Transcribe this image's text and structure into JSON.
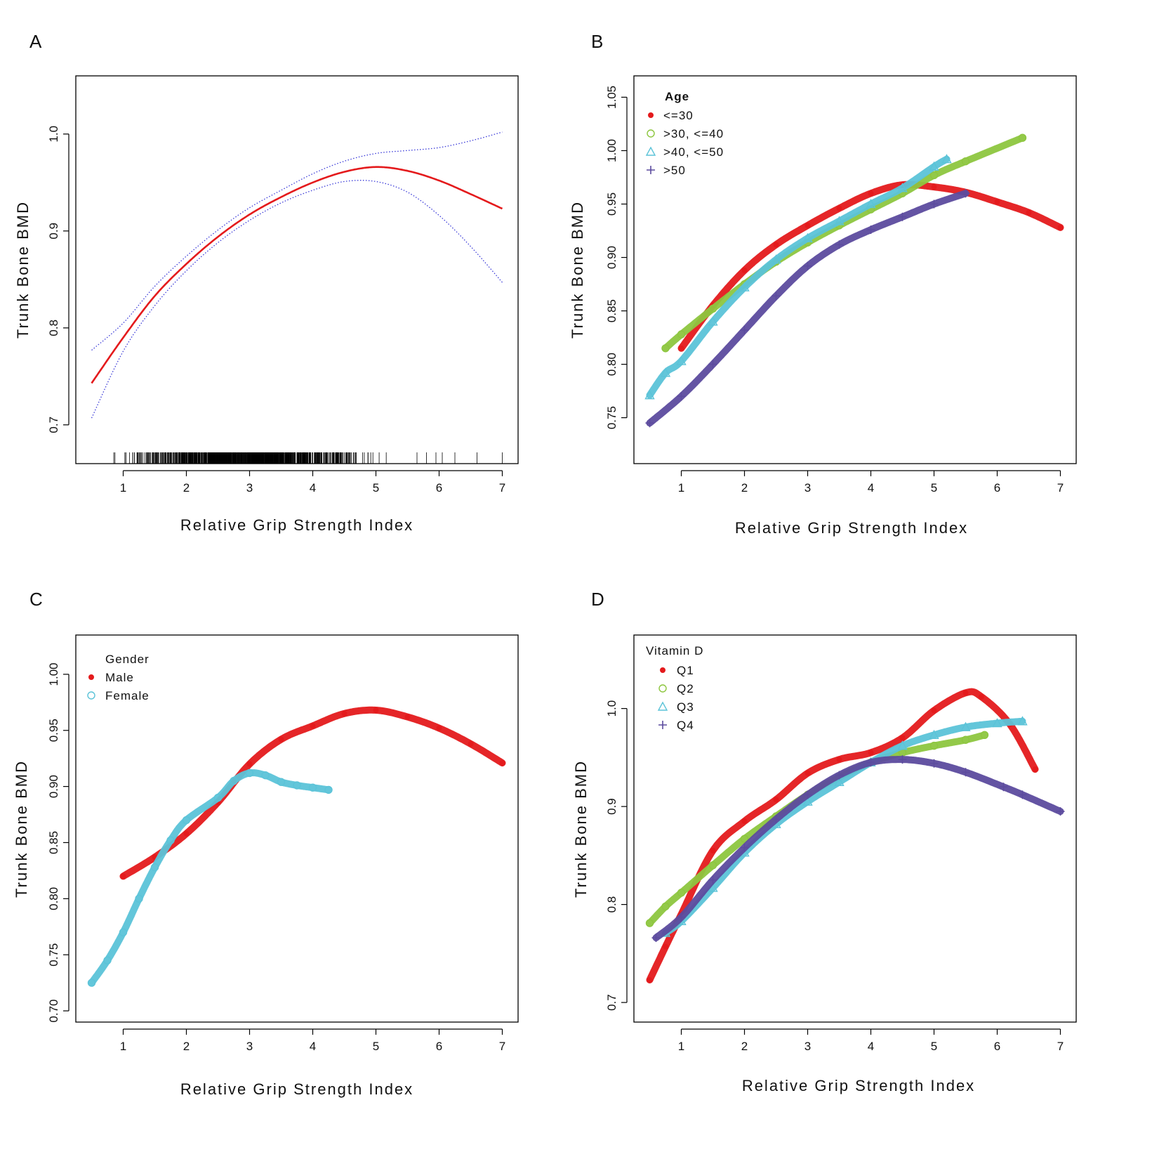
{
  "figure_title": "",
  "chart_data": [
    {
      "panel": "A",
      "type": "line",
      "title": "",
      "xlabel": "Relative Grip Strength Index",
      "ylabel": "Trunk Bone BMD",
      "xlim": [
        0.25,
        7.25
      ],
      "ylim": [
        0.66,
        1.06
      ],
      "xticks": [
        1,
        2,
        3,
        4,
        5,
        6,
        7
      ],
      "yticks": [
        0.7,
        0.8,
        0.9,
        1.0
      ],
      "ytick_labels": [
        "0.7",
        "0.8",
        "0.9",
        "1.0"
      ],
      "rug": true,
      "legend": null,
      "series": [
        {
          "name": "fit",
          "style": "solid",
          "color": "#e41a1c",
          "x": [
            0.5,
            1.0,
            1.5,
            2.0,
            2.5,
            3.0,
            3.5,
            4.0,
            4.5,
            5.0,
            5.5,
            6.0,
            6.5,
            7.0
          ],
          "y": [
            0.743,
            0.79,
            0.833,
            0.866,
            0.894,
            0.917,
            0.935,
            0.95,
            0.961,
            0.966,
            0.962,
            0.952,
            0.938,
            0.923
          ]
        },
        {
          "name": "upper",
          "style": "dotted",
          "color": "#3a3ad8",
          "x": [
            0.5,
            1.0,
            1.5,
            2.0,
            2.5,
            3.0,
            3.5,
            4.0,
            4.5,
            5.0,
            5.5,
            6.0,
            6.5,
            7.0
          ],
          "y": [
            0.777,
            0.805,
            0.843,
            0.874,
            0.901,
            0.924,
            0.942,
            0.959,
            0.972,
            0.98,
            0.983,
            0.986,
            0.993,
            1.002
          ]
        },
        {
          "name": "lower",
          "style": "dotted",
          "color": "#3a3ad8",
          "x": [
            0.5,
            1.0,
            1.5,
            2.0,
            2.5,
            3.0,
            3.5,
            4.0,
            4.5,
            5.0,
            5.5,
            6.0,
            6.5,
            7.0
          ],
          "y": [
            0.707,
            0.776,
            0.823,
            0.859,
            0.888,
            0.911,
            0.929,
            0.942,
            0.951,
            0.951,
            0.94,
            0.916,
            0.884,
            0.847
          ]
        }
      ]
    },
    {
      "panel": "B",
      "type": "scatter",
      "title": "",
      "xlabel": "Relative Grip Strength Index",
      "ylabel": "Trunk Bone BMD",
      "xlim": [
        0.25,
        7.25
      ],
      "ylim": [
        0.707,
        1.07
      ],
      "xticks": [
        1,
        2,
        3,
        4,
        5,
        6,
        7
      ],
      "yticks": [
        0.75,
        0.8,
        0.85,
        0.9,
        0.95,
        1.0,
        1.05
      ],
      "ytick_labels": [
        "0.75",
        "0.80",
        "0.85",
        "0.90",
        "0.95",
        "1.00",
        "1.05"
      ],
      "legend": {
        "title": "Age",
        "position": "top-left"
      },
      "series": [
        {
          "name": "<=30",
          "marker": "dot",
          "color": "#e41a1c",
          "x": [
            1.0,
            1.5,
            2.0,
            2.5,
            3.0,
            3.5,
            4.0,
            4.5,
            5.0,
            5.5,
            6.0,
            6.5,
            7.0
          ],
          "y": [
            0.815,
            0.855,
            0.888,
            0.912,
            0.93,
            0.946,
            0.96,
            0.968,
            0.966,
            0.961,
            0.952,
            0.942,
            0.928
          ]
        },
        {
          "name": ">30, <=40",
          "marker": "circle",
          "color": "#8dc63f",
          "x": [
            0.75,
            1.0,
            1.5,
            2.0,
            2.5,
            3.0,
            3.5,
            4.0,
            4.5,
            5.0,
            5.5,
            6.4
          ],
          "y": [
            0.815,
            0.828,
            0.852,
            0.875,
            0.896,
            0.914,
            0.93,
            0.945,
            0.96,
            0.977,
            0.99,
            1.012
          ]
        },
        {
          "name": ">40, <=50",
          "marker": "triangle",
          "color": "#5bc3d8",
          "x": [
            0.5,
            0.75,
            1.0,
            1.5,
            2.0,
            2.5,
            3.0,
            3.5,
            4.0,
            4.5,
            5.0,
            5.2
          ],
          "y": [
            0.771,
            0.792,
            0.803,
            0.84,
            0.872,
            0.898,
            0.918,
            0.934,
            0.95,
            0.965,
            0.985,
            0.992
          ]
        },
        {
          "name": ">50",
          "marker": "plus",
          "color": "#5c4b9e",
          "x": [
            0.5,
            1.0,
            1.5,
            2.0,
            2.5,
            3.0,
            3.5,
            4.0,
            4.5,
            5.0,
            5.5
          ],
          "y": [
            0.745,
            0.77,
            0.8,
            0.832,
            0.864,
            0.892,
            0.912,
            0.926,
            0.938,
            0.95,
            0.96
          ]
        }
      ]
    },
    {
      "panel": "C",
      "type": "scatter",
      "title": "",
      "xlabel": "Relative Grip Strength Index",
      "ylabel": "Trunk Bone BMD",
      "xlim": [
        0.25,
        7.25
      ],
      "ylim": [
        0.69,
        1.035
      ],
      "xticks": [
        1,
        2,
        3,
        4,
        5,
        6,
        7
      ],
      "yticks": [
        0.7,
        0.75,
        0.8,
        0.85,
        0.9,
        0.95,
        1.0
      ],
      "ytick_labels": [
        "0.70",
        "0.75",
        "0.80",
        "0.85",
        "0.90",
        "0.95",
        "1.00"
      ],
      "legend": {
        "title": "Gender",
        "position": "top-left"
      },
      "series": [
        {
          "name": "Male",
          "marker": "dot",
          "color": "#e41a1c",
          "x": [
            1.0,
            1.5,
            2.0,
            2.5,
            3.0,
            3.5,
            4.0,
            4.5,
            5.0,
            5.5,
            6.0,
            6.5,
            7.0
          ],
          "y": [
            0.82,
            0.837,
            0.858,
            0.886,
            0.92,
            0.942,
            0.954,
            0.965,
            0.968,
            0.962,
            0.952,
            0.938,
            0.921
          ]
        },
        {
          "name": "Female",
          "marker": "circle",
          "color": "#5bc3d8",
          "x": [
            0.5,
            0.75,
            1.0,
            1.25,
            1.5,
            1.75,
            2.0,
            2.5,
            2.75,
            3.0,
            3.25,
            3.5,
            3.75,
            4.0,
            4.25
          ],
          "y": [
            0.725,
            0.745,
            0.77,
            0.8,
            0.828,
            0.852,
            0.87,
            0.89,
            0.905,
            0.912,
            0.91,
            0.904,
            0.901,
            0.899,
            0.897
          ]
        }
      ]
    },
    {
      "panel": "D",
      "type": "scatter",
      "title": "",
      "xlabel": "Relative Grip Strength Index",
      "ylabel": "Trunk Bone BMD",
      "xlim": [
        0.25,
        7.25
      ],
      "ylim": [
        0.68,
        1.075
      ],
      "xticks": [
        1,
        2,
        3,
        4,
        5,
        6,
        7
      ],
      "yticks": [
        0.7,
        0.8,
        0.9,
        1.0
      ],
      "ytick_labels": [
        "0.7",
        "0.8",
        "0.9",
        "1.0"
      ],
      "legend": {
        "title": "Vitamin D",
        "position": "top-left"
      },
      "series": [
        {
          "name": "Q1",
          "marker": "dot",
          "color": "#e41a1c",
          "x": [
            0.5,
            0.75,
            1.0,
            1.5,
            2.0,
            2.5,
            3.0,
            3.5,
            4.0,
            4.5,
            5.0,
            5.5,
            5.75,
            6.2,
            6.6
          ],
          "y": [
            0.723,
            0.757,
            0.79,
            0.855,
            0.885,
            0.907,
            0.934,
            0.948,
            0.955,
            0.97,
            0.998,
            1.016,
            1.012,
            0.984,
            0.938
          ]
        },
        {
          "name": "Q2",
          "marker": "circle",
          "color": "#8dc63f",
          "x": [
            0.5,
            0.75,
            1.0,
            1.5,
            2.0,
            2.5,
            3.0,
            3.5,
            4.0,
            4.5,
            5.0,
            5.5,
            5.8
          ],
          "y": [
            0.781,
            0.798,
            0.812,
            0.84,
            0.867,
            0.89,
            0.912,
            0.93,
            0.945,
            0.955,
            0.962,
            0.968,
            0.973
          ]
        },
        {
          "name": "Q3",
          "marker": "triangle",
          "color": "#5bc3d8",
          "x": [
            0.75,
            1.0,
            1.5,
            2.0,
            2.5,
            3.0,
            3.5,
            4.0,
            4.5,
            5.0,
            5.5,
            6.0,
            6.4
          ],
          "y": [
            0.771,
            0.783,
            0.817,
            0.853,
            0.882,
            0.905,
            0.925,
            0.945,
            0.962,
            0.973,
            0.981,
            0.985,
            0.987
          ]
        },
        {
          "name": "Q4",
          "marker": "plus",
          "color": "#5c4b9e",
          "x": [
            0.6,
            1.0,
            1.5,
            2.0,
            2.5,
            3.0,
            3.5,
            4.0,
            4.5,
            5.0,
            5.5,
            6.1,
            6.4,
            7.0
          ],
          "y": [
            0.766,
            0.787,
            0.825,
            0.858,
            0.887,
            0.912,
            0.932,
            0.945,
            0.948,
            0.944,
            0.935,
            0.92,
            0.912,
            0.895
          ]
        }
      ]
    }
  ]
}
